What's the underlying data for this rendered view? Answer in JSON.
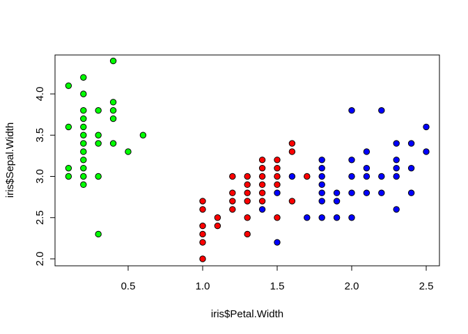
{
  "chart_data": {
    "type": "scatter",
    "title": "",
    "xlabel": "iris$Petal.Width",
    "ylabel": "iris$Sepal.Width",
    "xlim": [
      0.0,
      2.5
    ],
    "ylim": [
      2.0,
      4.4
    ],
    "x_ticks": [
      0.5,
      1.0,
      1.5,
      2.0,
      2.5
    ],
    "x_tick_labels": [
      "0.5",
      "1.0",
      "1.5",
      "2.0",
      "2.5"
    ],
    "y_ticks": [
      2.0,
      2.5,
      3.0,
      3.5,
      4.0
    ],
    "y_tick_labels": [
      "2.0",
      "2.5",
      "3.0",
      "3.5",
      "4.0"
    ],
    "grid": false,
    "legend": false,
    "series": [
      {
        "color": "#00ff00",
        "points": [
          [
            0.1,
            4.1
          ],
          [
            0.1,
            3.6
          ],
          [
            0.1,
            3.1
          ],
          [
            0.1,
            3.0
          ],
          [
            0.2,
            4.2
          ],
          [
            0.2,
            4.0
          ],
          [
            0.2,
            3.8
          ],
          [
            0.2,
            3.7
          ],
          [
            0.2,
            3.6
          ],
          [
            0.2,
            3.5
          ],
          [
            0.2,
            3.4
          ],
          [
            0.2,
            3.3
          ],
          [
            0.2,
            3.2
          ],
          [
            0.2,
            3.1
          ],
          [
            0.2,
            3.0
          ],
          [
            0.2,
            2.9
          ],
          [
            0.3,
            3.8
          ],
          [
            0.3,
            3.5
          ],
          [
            0.3,
            3.4
          ],
          [
            0.3,
            3.0
          ],
          [
            0.3,
            2.3
          ],
          [
            0.4,
            4.4
          ],
          [
            0.4,
            3.9
          ],
          [
            0.4,
            3.8
          ],
          [
            0.4,
            3.7
          ],
          [
            0.4,
            3.4
          ],
          [
            0.5,
            3.3
          ],
          [
            0.6,
            3.5
          ]
        ]
      },
      {
        "color": "#ff0000",
        "points": [
          [
            1.0,
            2.7
          ],
          [
            1.0,
            2.6
          ],
          [
            1.0,
            2.4
          ],
          [
            1.0,
            2.3
          ],
          [
            1.0,
            2.2
          ],
          [
            1.0,
            2.0
          ],
          [
            1.1,
            2.5
          ],
          [
            1.1,
            2.4
          ],
          [
            1.2,
            3.0
          ],
          [
            1.2,
            2.8
          ],
          [
            1.2,
            2.7
          ],
          [
            1.2,
            2.6
          ],
          [
            1.3,
            3.0
          ],
          [
            1.3,
            2.9
          ],
          [
            1.3,
            2.8
          ],
          [
            1.3,
            2.7
          ],
          [
            1.3,
            2.5
          ],
          [
            1.3,
            2.3
          ],
          [
            1.4,
            3.2
          ],
          [
            1.4,
            3.1
          ],
          [
            1.4,
            3.0
          ],
          [
            1.4,
            2.9
          ],
          [
            1.4,
            2.8
          ],
          [
            1.4,
            2.7
          ],
          [
            1.5,
            3.2
          ],
          [
            1.5,
            3.1
          ],
          [
            1.5,
            3.0
          ],
          [
            1.5,
            2.9
          ],
          [
            1.5,
            2.5
          ],
          [
            1.6,
            3.4
          ],
          [
            1.6,
            3.3
          ],
          [
            1.6,
            2.7
          ],
          [
            1.7,
            3.0
          ]
        ]
      },
      {
        "color": "#0000ff",
        "points": [
          [
            1.4,
            2.6
          ],
          [
            1.5,
            2.8
          ],
          [
            1.5,
            2.2
          ],
          [
            1.6,
            3.0
          ],
          [
            1.7,
            2.5
          ],
          [
            1.8,
            3.2
          ],
          [
            1.8,
            3.1
          ],
          [
            1.8,
            3.0
          ],
          [
            1.8,
            2.9
          ],
          [
            1.8,
            2.8
          ],
          [
            1.8,
            2.7
          ],
          [
            1.8,
            2.5
          ],
          [
            1.9,
            2.8
          ],
          [
            1.9,
            2.7
          ],
          [
            1.9,
            2.5
          ],
          [
            2.0,
            3.8
          ],
          [
            2.0,
            3.2
          ],
          [
            2.0,
            3.0
          ],
          [
            2.0,
            2.8
          ],
          [
            2.0,
            2.5
          ],
          [
            2.1,
            3.3
          ],
          [
            2.1,
            3.1
          ],
          [
            2.1,
            3.0
          ],
          [
            2.1,
            2.8
          ],
          [
            2.2,
            3.8
          ],
          [
            2.2,
            3.0
          ],
          [
            2.2,
            2.8
          ],
          [
            2.3,
            3.4
          ],
          [
            2.3,
            3.2
          ],
          [
            2.3,
            3.1
          ],
          [
            2.3,
            3.0
          ],
          [
            2.3,
            2.6
          ],
          [
            2.4,
            3.4
          ],
          [
            2.4,
            3.1
          ],
          [
            2.4,
            2.8
          ],
          [
            2.5,
            3.6
          ],
          [
            2.5,
            3.3
          ]
        ]
      }
    ]
  }
}
